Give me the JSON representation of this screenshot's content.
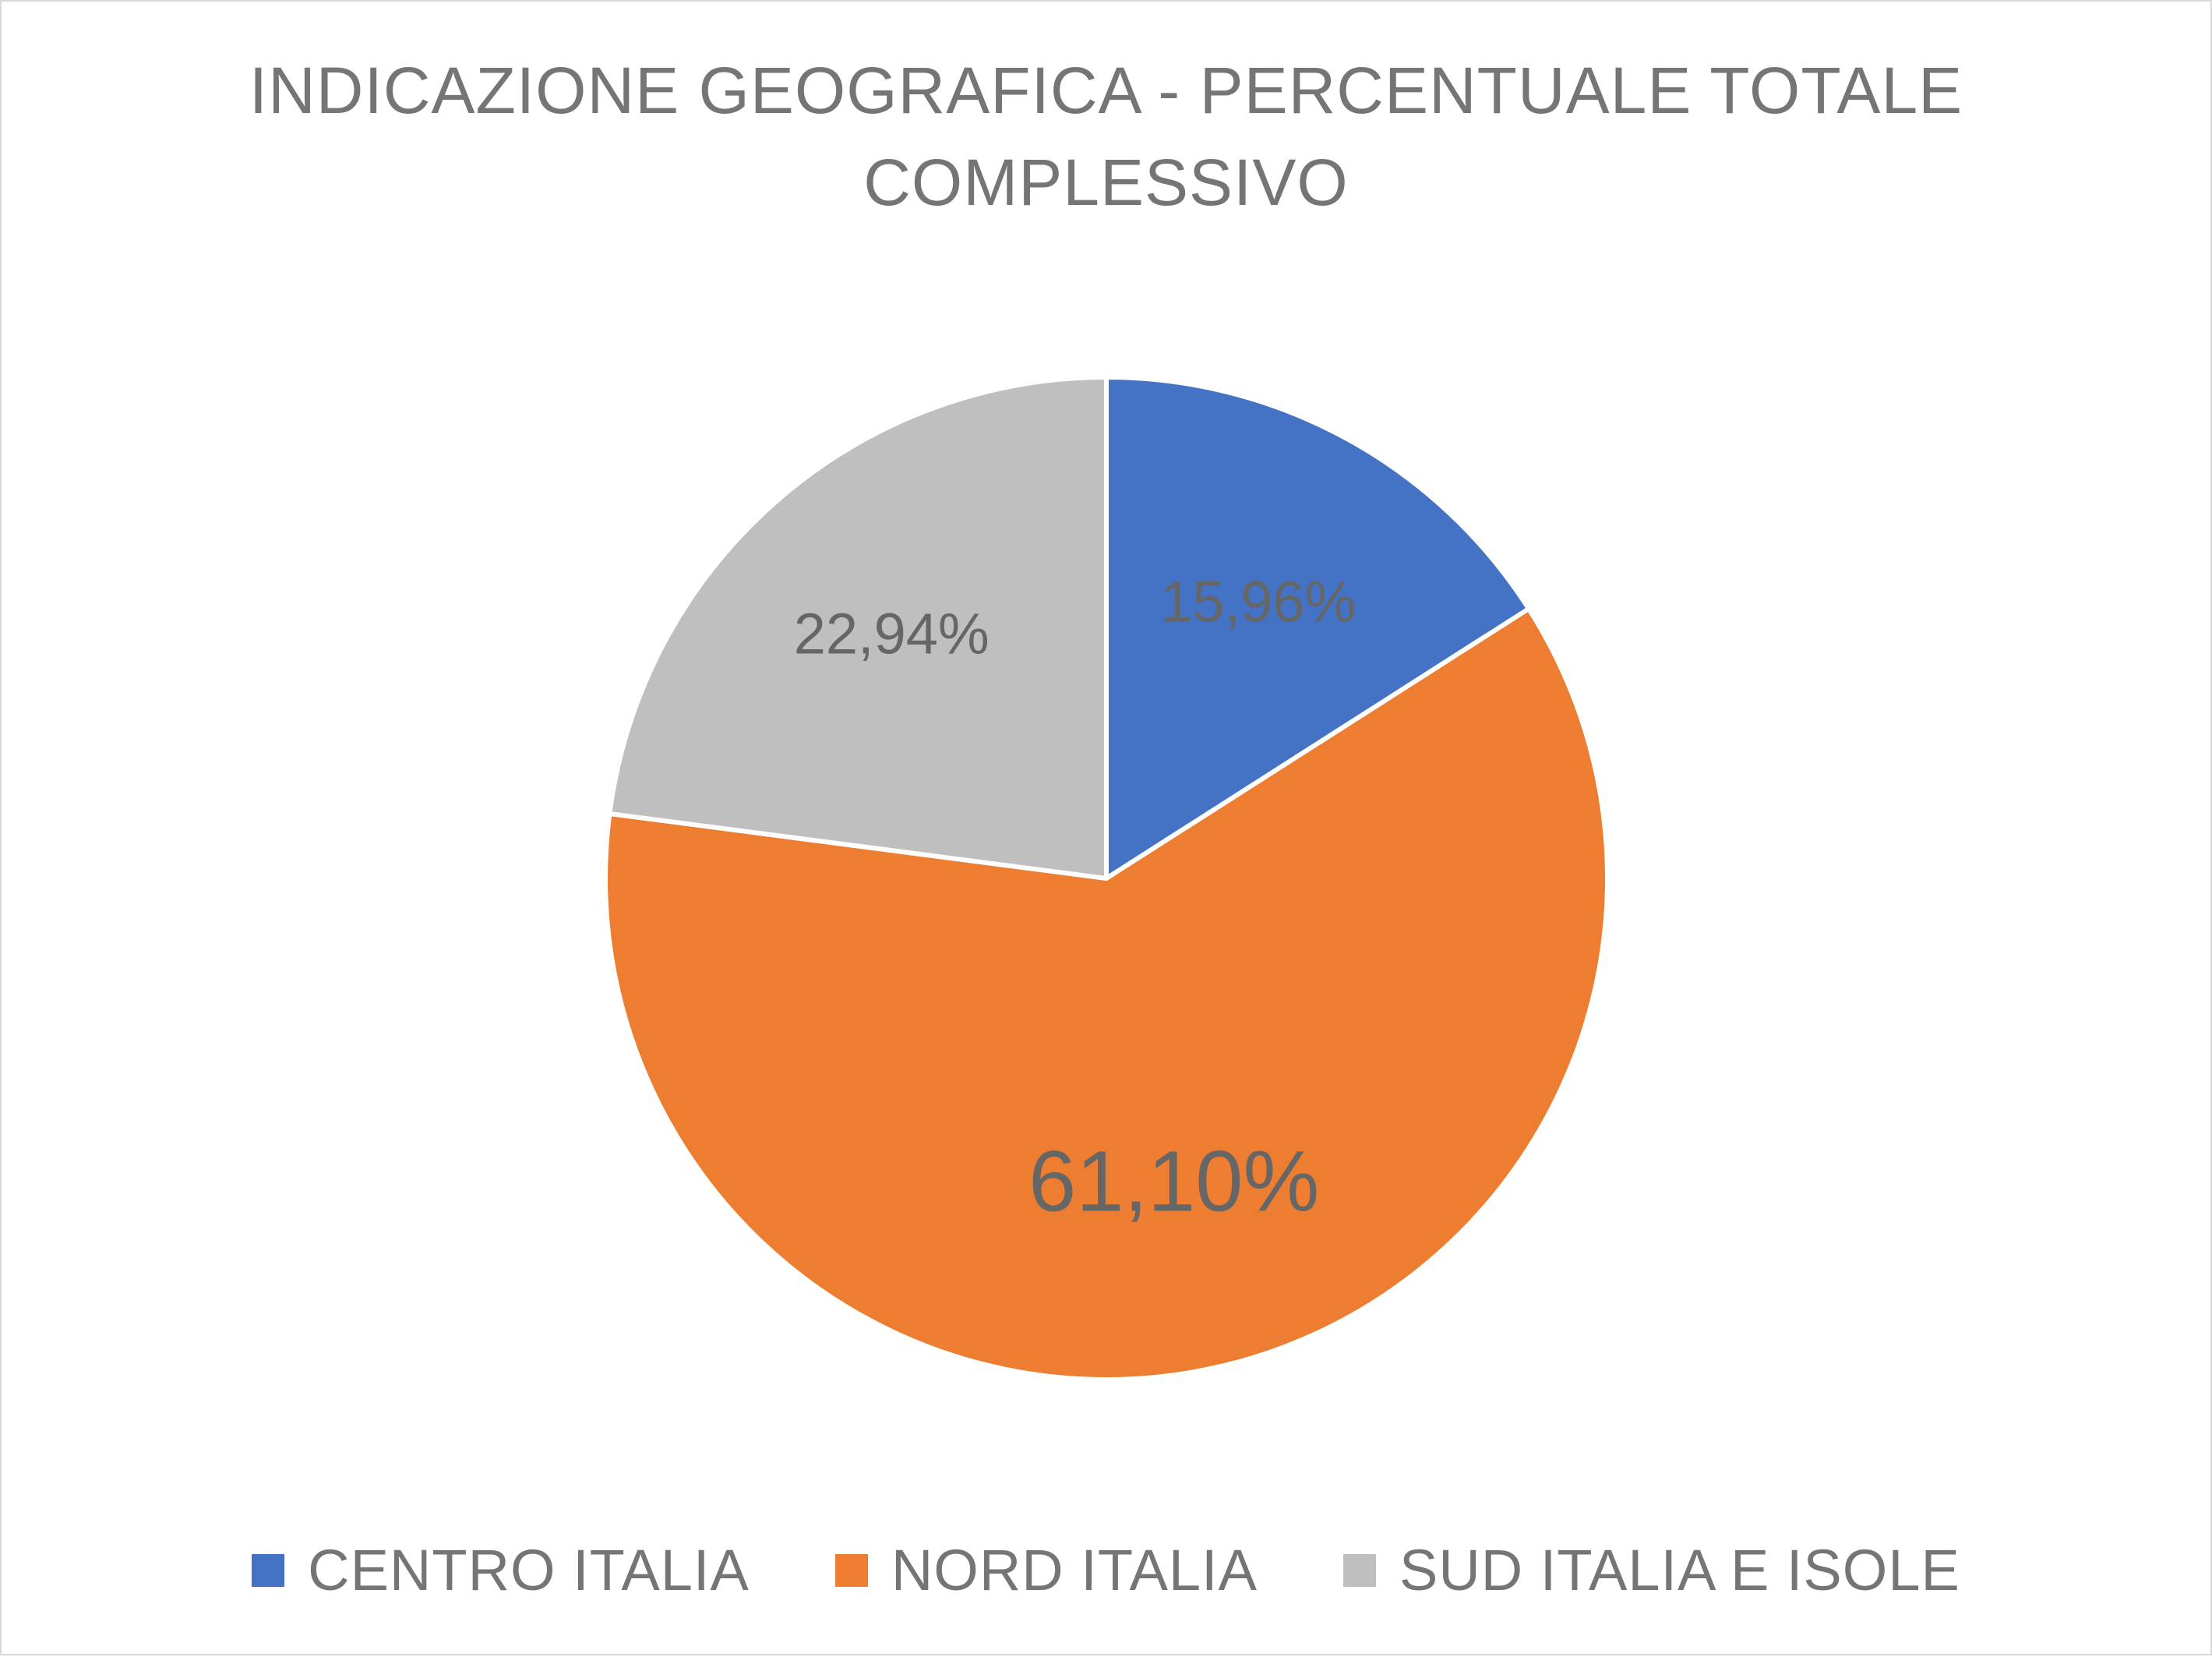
{
  "chart_data": {
    "type": "pie",
    "title": "INDICAZIONE GEOGRAFICA - PERCENTUALE TOTALE COMPLESSIVO",
    "title_lines": [
      "INDICAZIONE GEOGRAFICA - PERCENTUALE TOTALE",
      "COMPLESSIVO"
    ],
    "categories": [
      "CENTRO ITALIA",
      "NORD ITALIA",
      "SUD ITALIA E ISOLE"
    ],
    "values": [
      15.96,
      61.1,
      22.94
    ],
    "data_labels": [
      "15,96%",
      "61,10%",
      "22,94%"
    ],
    "colors": [
      "#4472C4",
      "#ED7D31",
      "#BFBFBF"
    ],
    "start_angle_deg": 0,
    "direction": "clockwise",
    "legend": "bottom",
    "grid": false
  }
}
